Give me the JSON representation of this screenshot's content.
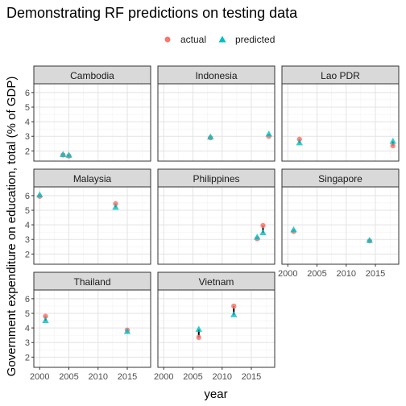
{
  "chart_data": {
    "type": "scatter",
    "title": "Demonstrating RF predictions on testing data",
    "xlabel": "year",
    "ylabel": "Government expenditure on education, total (% of GDP)",
    "xlim": [
      1999,
      2019
    ],
    "ylim": [
      1.3,
      6.6
    ],
    "x_ticks": [
      2000,
      2005,
      2010,
      2015
    ],
    "y_ticks": [
      2,
      3,
      4,
      5,
      6
    ],
    "grid": true,
    "legend_position": "top",
    "colors": {
      "actual": "#F8766D",
      "predicted": "#00BFC4",
      "strip_fill": "#D9D9D9",
      "panel_border": "#333333",
      "segment": "#000000"
    },
    "series": [
      {
        "name": "actual",
        "marker": "circle"
      },
      {
        "name": "predicted",
        "marker": "triangle"
      }
    ],
    "panels": [
      {
        "name": "Cambodia",
        "points": [
          {
            "x": 2004,
            "actual": 1.72,
            "predicted": 1.75
          },
          {
            "x": 2005,
            "actual": 1.65,
            "predicted": 1.7
          }
        ]
      },
      {
        "name": "Indonesia",
        "points": [
          {
            "x": 2008,
            "actual": 2.9,
            "predicted": 2.95
          },
          {
            "x": 2018,
            "actual": 3.0,
            "predicted": 3.15
          }
        ]
      },
      {
        "name": "Lao PDR",
        "points": [
          {
            "x": 2002,
            "actual": 2.8,
            "predicted": 2.55
          },
          {
            "x": 2018,
            "actual": 2.35,
            "predicted": 2.65
          }
        ]
      },
      {
        "name": "Malaysia",
        "points": [
          {
            "x": 2000,
            "actual": 5.95,
            "predicted": 6.05
          },
          {
            "x": 2013,
            "actual": 5.45,
            "predicted": 5.2
          }
        ]
      },
      {
        "name": "Philippines",
        "points": [
          {
            "x": 2016,
            "actual": 3.05,
            "predicted": 3.15
          },
          {
            "x": 2017,
            "actual": 3.95,
            "predicted": 3.45
          }
        ]
      },
      {
        "name": "Singapore",
        "points": [
          {
            "x": 2001,
            "actual": 3.55,
            "predicted": 3.65
          },
          {
            "x": 2014,
            "actual": 2.9,
            "predicted": 2.93
          }
        ]
      },
      {
        "name": "Thailand",
        "points": [
          {
            "x": 2001,
            "actual": 4.8,
            "predicted": 4.5
          },
          {
            "x": 2015,
            "actual": 3.85,
            "predicted": 3.75
          }
        ]
      },
      {
        "name": "Vietnam",
        "points": [
          {
            "x": 2006,
            "actual": 3.35,
            "predicted": 3.9
          },
          {
            "x": 2012,
            "actual": 5.5,
            "predicted": 4.9
          }
        ]
      }
    ]
  }
}
